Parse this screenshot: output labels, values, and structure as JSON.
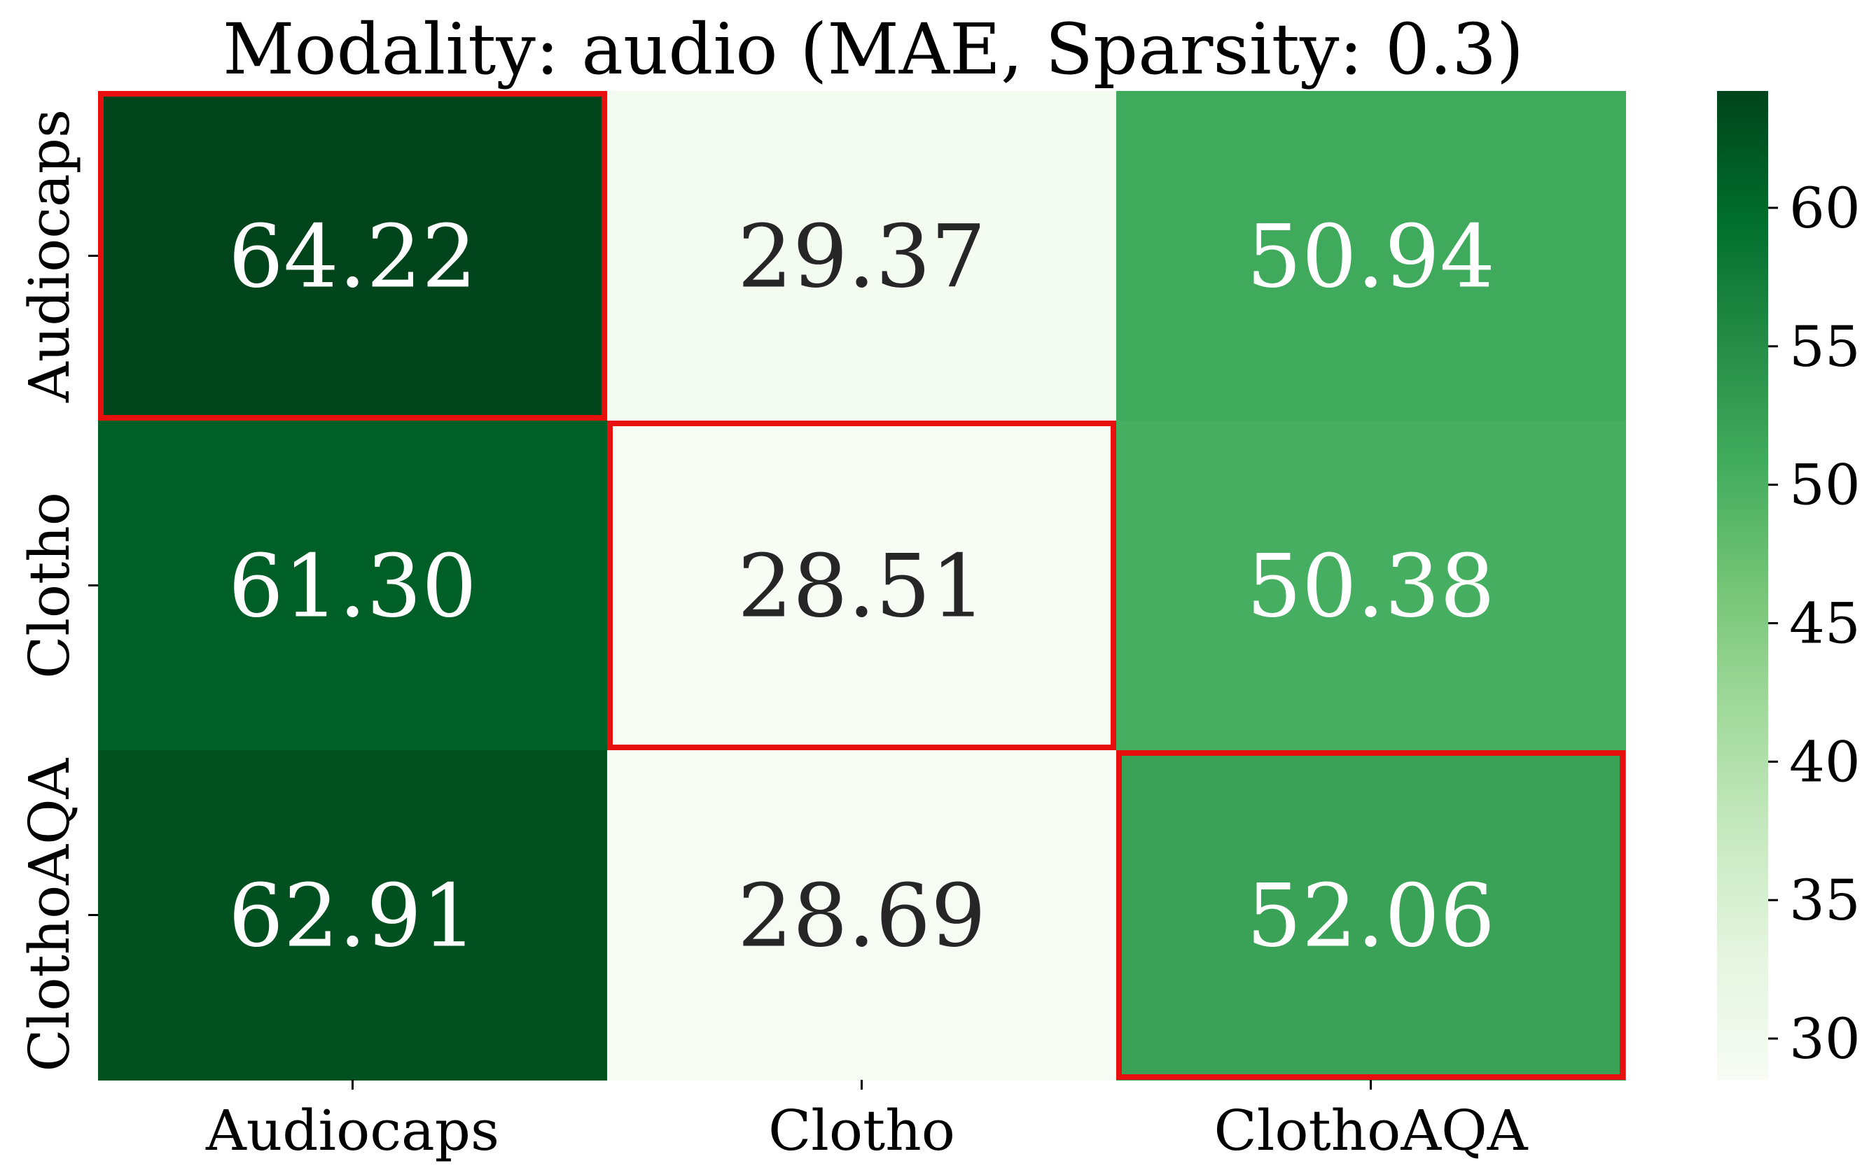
{
  "chart_data": {
    "type": "heatmap",
    "title": "Modality: audio (MAE, Sparsity: 0.3)",
    "x_categories": [
      "Audiocaps",
      "Clotho",
      "ClothoAQA"
    ],
    "y_categories": [
      "Audiocaps",
      "Clotho",
      "ClothoAQA"
    ],
    "values": [
      [
        64.22,
        29.37,
        50.94
      ],
      [
        61.3,
        28.51,
        50.38
      ],
      [
        62.91,
        28.69,
        52.06
      ]
    ],
    "value_labels": [
      [
        "64.22",
        "29.37",
        "50.94"
      ],
      [
        "61.30",
        "28.51",
        "50.38"
      ],
      [
        "62.91",
        "28.69",
        "52.06"
      ]
    ],
    "highlighted_cells": [
      [
        0,
        0
      ],
      [
        1,
        1
      ],
      [
        2,
        2
      ]
    ],
    "highlight_color": "#e8100e",
    "colormap": "Greens",
    "colorbar": {
      "min": 28.51,
      "max": 64.22,
      "ticks": [
        30,
        35,
        40,
        45,
        50,
        55,
        60
      ],
      "tick_labels": [
        "30",
        "35",
        "40",
        "45",
        "50",
        "55",
        "60"
      ]
    },
    "text_colors": {
      "dark": "#262626",
      "light": "#ffffff"
    }
  }
}
